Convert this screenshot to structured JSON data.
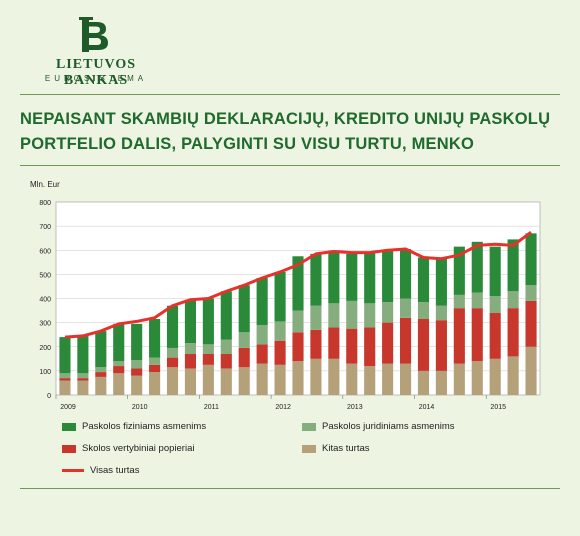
{
  "logo": {
    "name": "LIETUVOS BANKAS",
    "subtitle": "EUROSISTEMA"
  },
  "headline": {
    "line1": "NEPAISANT SKAMBIŲ DEKLARACIJŲ, KREDITO UNIJŲ PASKOLŲ",
    "line2": "PORTFELIO DALIS, PALYGINTI SU VISU TURTU, MENKO"
  },
  "colors": {
    "background": "#eef4e2",
    "brand_green": "#1f5a2a",
    "paskolos_fiz": "#2b8a3a",
    "paskolos_jur": "#86ad7d",
    "skolos": "#c8372c",
    "kitas": "#b4a17a",
    "visas": "#e8312a"
  },
  "chart_data": {
    "type": "bar",
    "stacked": true,
    "ylabel": "Mln. Eur",
    "ylim": [
      0,
      800
    ],
    "yticks": [
      0,
      100,
      200,
      300,
      400,
      500,
      600,
      700,
      800
    ],
    "x_labels": [
      "2009",
      "2010",
      "2011",
      "2012",
      "2013",
      "2014",
      "2015"
    ],
    "grid": true,
    "legend_position": "bottom",
    "series": [
      {
        "name": "Kitas turtas",
        "values": [
          60,
          60,
          75,
          90,
          80,
          95,
          115,
          110,
          125,
          110,
          115,
          130,
          125,
          140,
          150,
          150,
          130,
          120,
          130,
          130,
          100,
          100,
          130,
          140,
          150,
          160,
          200
        ]
      },
      {
        "name": "Skolos vertybiniai popieriai",
        "values": [
          10,
          10,
          20,
          30,
          30,
          30,
          40,
          60,
          45,
          60,
          80,
          80,
          100,
          120,
          120,
          130,
          145,
          160,
          170,
          190,
          215,
          210,
          230,
          220,
          190,
          200,
          190
        ]
      },
      {
        "name": "Paskolos juridiniams asmenims",
        "values": [
          20,
          20,
          20,
          20,
          35,
          30,
          40,
          45,
          40,
          60,
          65,
          80,
          80,
          90,
          100,
          100,
          115,
          100,
          85,
          80,
          70,
          60,
          55,
          65,
          70,
          70,
          65
        ]
      },
      {
        "name": "Paskolos fiziniams asmenims",
        "values": [
          150,
          155,
          150,
          155,
          150,
          160,
          175,
          180,
          190,
          200,
          195,
          195,
          205,
          225,
          215,
          215,
          195,
          210,
          215,
          205,
          185,
          195,
          200,
          210,
          205,
          215,
          215
        ]
      }
    ],
    "line": {
      "name": "Visas turtas",
      "values": [
        240,
        245,
        265,
        295,
        305,
        320,
        370,
        395,
        400,
        430,
        455,
        485,
        510,
        540,
        585,
        595,
        590,
        590,
        600,
        605,
        570,
        565,
        580,
        620,
        625,
        620,
        675
      ]
    }
  }
}
